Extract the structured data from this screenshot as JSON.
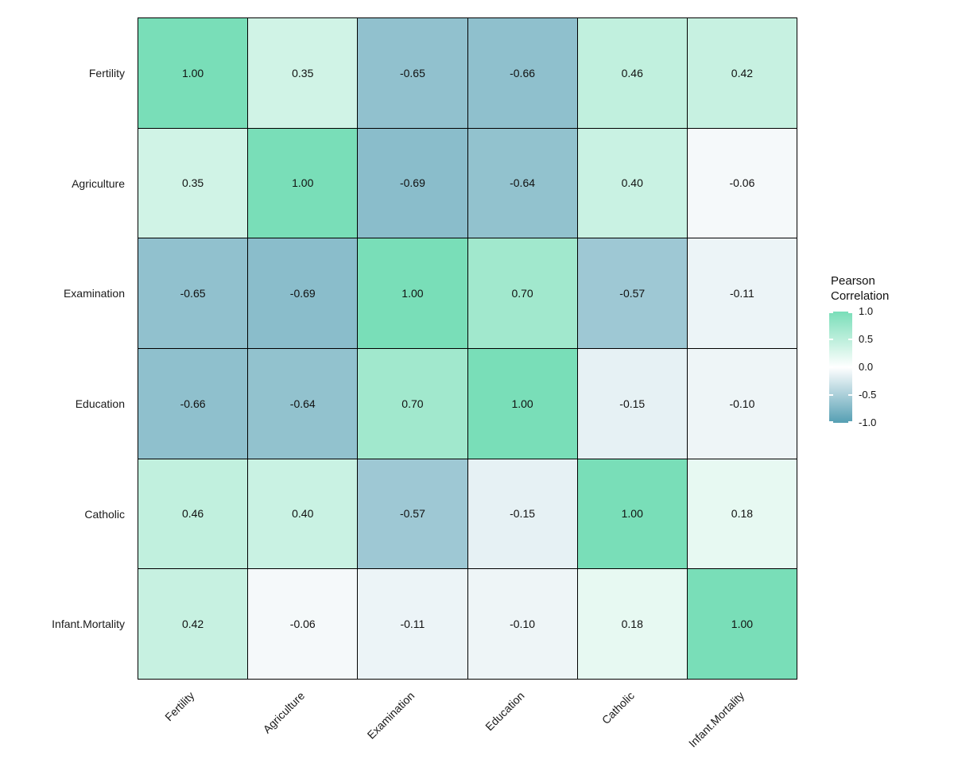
{
  "chart_data": {
    "type": "heatmap",
    "title": "",
    "variables": [
      "Fertility",
      "Agriculture",
      "Examination",
      "Education",
      "Catholic",
      "Infant.Mortality"
    ],
    "matrix": [
      [
        1.0,
        0.35,
        -0.65,
        -0.66,
        0.46,
        0.42
      ],
      [
        0.35,
        1.0,
        -0.69,
        -0.64,
        0.4,
        -0.06
      ],
      [
        -0.65,
        -0.69,
        1.0,
        0.7,
        -0.57,
        -0.11
      ],
      [
        -0.66,
        -0.64,
        0.7,
        1.0,
        -0.15,
        -0.1
      ],
      [
        0.46,
        0.4,
        -0.57,
        -0.15,
        1.0,
        0.18
      ],
      [
        0.42,
        -0.06,
        -0.11,
        -0.1,
        0.18,
        1.0
      ]
    ],
    "value_format_decimals": 2,
    "legend": {
      "title": "Pearson Correlation",
      "ticks": [
        "1.0",
        "0.5",
        "0.0",
        "-0.5",
        "-1.0"
      ],
      "range": [
        -1,
        1
      ],
      "position": "right"
    },
    "colors": {
      "positive": "#79DEB8",
      "zero": "#FFFFFF",
      "negative": "#559FB3",
      "grid_line": "#000000",
      "cell_text": "#111111",
      "axis_text": "#1a1a1a",
      "background": "#FFFFFF"
    },
    "layout": {
      "grid_visible": false,
      "x_label_angle_deg": 45
    }
  }
}
